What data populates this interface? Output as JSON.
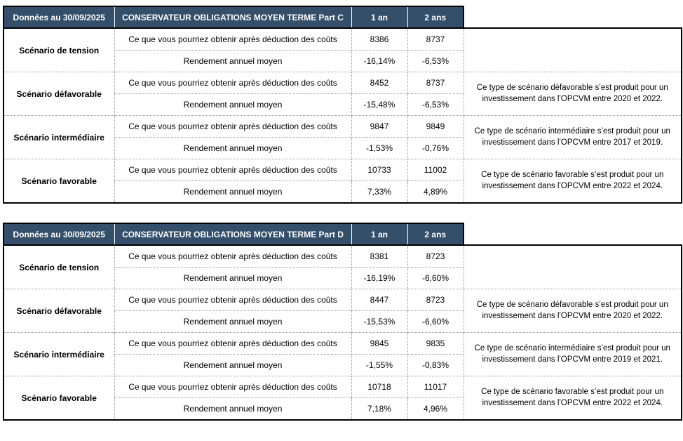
{
  "colors": {
    "header_bg": "#344F6A",
    "header_text": "#FFFFFF",
    "grid_dotted": "#999999",
    "outer_border": "#000000"
  },
  "tables": [
    {
      "header": {
        "date": "Données au 30/09/2025",
        "title": "CONSERVATEUR OBLIGATIONS MOYEN TERME Part C",
        "col1": "1 an",
        "col2": "2 ans"
      },
      "row_labels": {
        "value": "Ce que vous pourriez obtenir après déduction des coûts",
        "return": "Rendement annuel moyen"
      },
      "groups": [
        {
          "scenario": "Scénario de tension",
          "value_1an": "8386",
          "value_2ans": "8737",
          "return_1an": "-16,14%",
          "return_2ans": "-6,53%",
          "note": ""
        },
        {
          "scenario": "Scénario défavorable",
          "value_1an": "8452",
          "value_2ans": "8737",
          "return_1an": "-15,48%",
          "return_2ans": "-6,53%",
          "note": "Ce type de scénario défavorable s’est produit pour un investissement dans l’OPCVM entre 2020 et 2022."
        },
        {
          "scenario": "Scénario intermédiaire",
          "value_1an": "9847",
          "value_2ans": "9849",
          "return_1an": "-1,53%",
          "return_2ans": "-0,76%",
          "note": "Ce type de scénario intermédiaire s’est produit pour un investissement dans l’OPCVM entre 2017 et 2019."
        },
        {
          "scenario": "Scénario favorable",
          "value_1an": "10733",
          "value_2ans": "11002",
          "return_1an": "7,33%",
          "return_2ans": "4,89%",
          "note": "Ce type de scénario favorable s’est produit pour un investissement dans l’OPCVM entre 2022 et 2024."
        }
      ]
    },
    {
      "header": {
        "date": "Données au 30/09/2025",
        "title": "CONSERVATEUR OBLIGATIONS MOYEN TERME Part D",
        "col1": "1 an",
        "col2": "2 ans"
      },
      "row_labels": {
        "value": "Ce que vous pourriez obtenir après déduction des coûts",
        "return": "Rendement annuel moyen"
      },
      "groups": [
        {
          "scenario": "Scénario de tension",
          "value_1an": "8381",
          "value_2ans": "8723",
          "return_1an": "-16,19%",
          "return_2ans": "-6,60%",
          "note": ""
        },
        {
          "scenario": "Scénario défavorable",
          "value_1an": "8447",
          "value_2ans": "8723",
          "return_1an": "-15,53%",
          "return_2ans": "-6,60%",
          "note": "Ce type de scénario défavorable s’est produit pour un investissement dans l’OPCVM entre 2020 et 2022."
        },
        {
          "scenario": "Scénario intermédiaire",
          "value_1an": "9845",
          "value_2ans": "9835",
          "return_1an": "-1,55%",
          "return_2ans": "-0,83%",
          "note": "Ce type de scénario intermédiaire s’est produit pour un investissement dans l’OPCVM entre 2019 et 2021."
        },
        {
          "scenario": "Scénario favorable",
          "value_1an": "10718",
          "value_2ans": "11017",
          "return_1an": "7,18%",
          "return_2ans": "4,96%",
          "note": "Ce type de scénario favorable s’est produit pour un investissement dans l’OPCVM entre 2022 et 2024."
        }
      ]
    }
  ]
}
